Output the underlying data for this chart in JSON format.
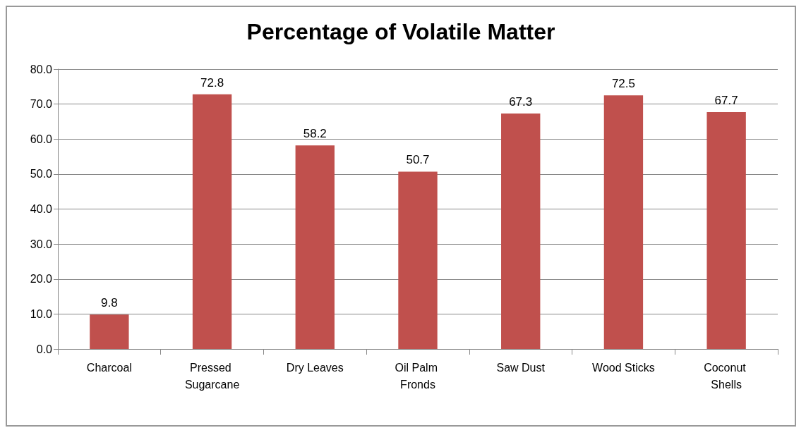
{
  "chart_data": {
    "type": "bar",
    "title": "Percentage of Volatile Matter",
    "categories": [
      "Charcoal",
      "Pressed Sugarcane",
      "Dry Leaves",
      "Oil Palm Fronds",
      "Saw Dust",
      "Wood Sticks",
      "Coconut Shells"
    ],
    "values": [
      9.8,
      72.8,
      58.2,
      50.7,
      67.3,
      72.5,
      67.7
    ],
    "color": "#c0504d",
    "ylim": [
      0,
      80
    ],
    "yticks": [
      {
        "value": 0,
        "label": "0.0"
      },
      {
        "value": 10,
        "label": "10.0"
      },
      {
        "value": 20,
        "label": "20.0"
      },
      {
        "value": 30,
        "label": "30.0"
      },
      {
        "value": 40,
        "label": "40.0"
      },
      {
        "value": 50,
        "label": "50.0"
      },
      {
        "value": 60,
        "label": "60.0"
      },
      {
        "value": 70,
        "label": "70.0"
      },
      {
        "value": 80,
        "label": "80.0"
      }
    ],
    "grid": "y",
    "data_labels": true
  }
}
